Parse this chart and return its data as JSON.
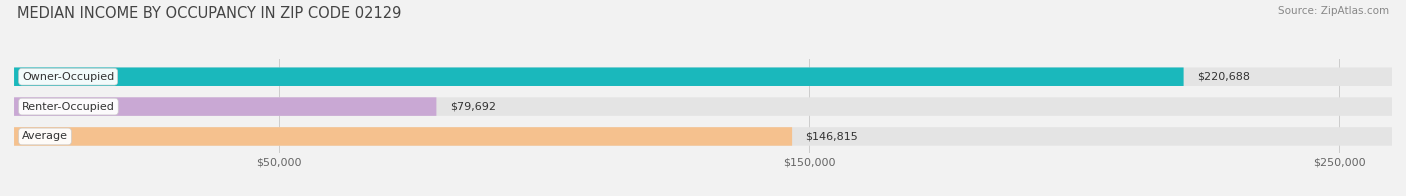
{
  "title": "MEDIAN INCOME BY OCCUPANCY IN ZIP CODE 02129",
  "source": "Source: ZipAtlas.com",
  "categories": [
    "Owner-Occupied",
    "Renter-Occupied",
    "Average"
  ],
  "values": [
    220688,
    79692,
    146815
  ],
  "labels": [
    "$220,688",
    "$79,692",
    "$146,815"
  ],
  "bar_colors": [
    "#1ab8bc",
    "#c9a8d4",
    "#f5c18e"
  ],
  "background_color": "#f2f2f2",
  "bar_bg_color": "#e4e4e4",
  "xlim": [
    0,
    260000
  ],
  "xticks": [
    50000,
    150000,
    250000
  ],
  "xtick_labels": [
    "$50,000",
    "$150,000",
    "$250,000"
  ],
  "title_fontsize": 10.5,
  "source_fontsize": 7.5,
  "label_fontsize": 8,
  "category_fontsize": 8
}
